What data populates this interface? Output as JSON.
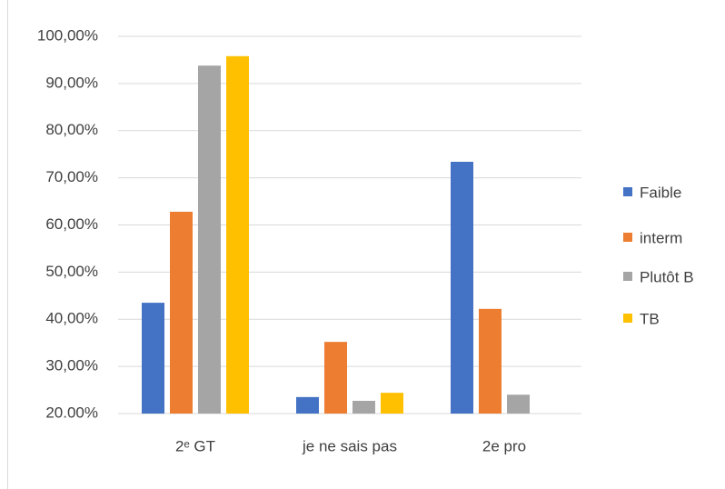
{
  "chart_data": {
    "type": "bar",
    "categories": [
      "2ᵉ GT",
      "je ne sais pas",
      "2e pro"
    ],
    "series": [
      {
        "name": "Faible",
        "color": "#4472c4",
        "values": [
          43.5,
          23.5,
          73.4
        ]
      },
      {
        "name": "interm",
        "color": "#ed7d31",
        "values": [
          62.8,
          35.2,
          42.2
        ]
      },
      {
        "name": "Plutôt B",
        "color": "#a5a5a5",
        "values": [
          93.8,
          22.7,
          24.0
        ]
      },
      {
        "name": "TB",
        "color": "#ffc000",
        "values": [
          95.8,
          24.4,
          null
        ]
      }
    ],
    "ylim": [
      20,
      100
    ],
    "yticks": [
      {
        "value": 20,
        "label": "20.00%"
      },
      {
        "value": 30,
        "label": "30,00%"
      },
      {
        "value": 40,
        "label": "40,00%"
      },
      {
        "value": 50,
        "label": "50,00%"
      },
      {
        "value": 60,
        "label": "60,00%"
      },
      {
        "value": 70,
        "label": "70,00%"
      },
      {
        "value": 80,
        "label": "80,00%"
      },
      {
        "value": 90,
        "label": "90,00%"
      },
      {
        "value": 100,
        "label": "100,00%"
      }
    ],
    "grid": true,
    "legend": "right"
  }
}
